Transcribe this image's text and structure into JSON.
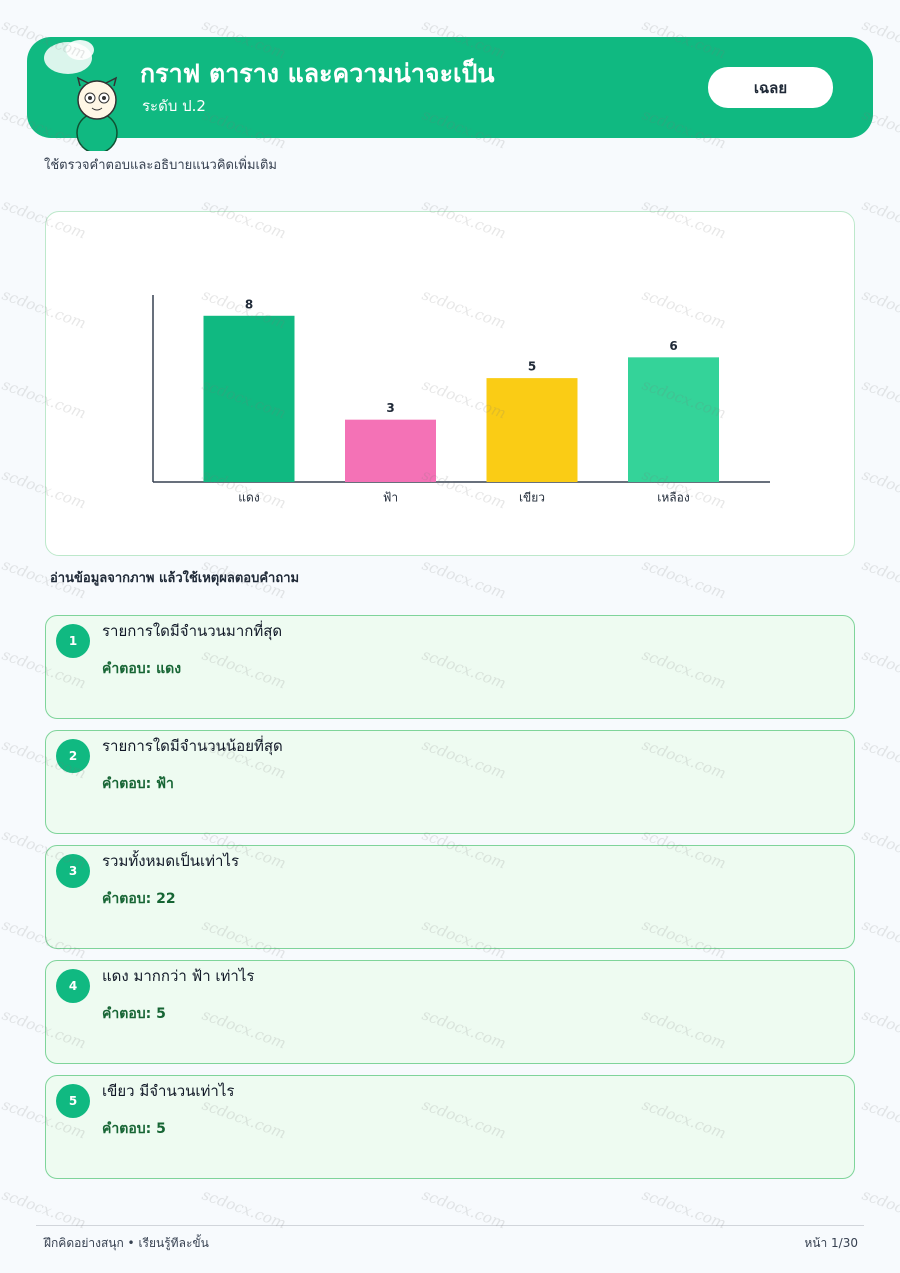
{
  "header": {
    "title": "กราฟ ตาราง และความน่าจะเป็น",
    "subtitle": "ระดับ ป.2",
    "badge": "เฉลย"
  },
  "intro": "ใช้ตรวจคำตอบและอธิบายแนวคิดเพิ่มเติม",
  "chart_data": {
    "type": "bar",
    "categories": [
      "แดง",
      "ฟ้า",
      "เขียว",
      "เหลือง"
    ],
    "values": [
      8,
      3,
      5,
      6
    ],
    "colors": [
      "#10b981",
      "#f472b6",
      "#facc15",
      "#34d399"
    ],
    "ylim": [
      0,
      9
    ]
  },
  "instruction": "อ่านข้อมูลจากภาพ แล้วใช้เหตุผลตอบคำถาม",
  "questions": [
    {
      "number": 1,
      "question": "รายการใดมีจำนวนมากที่สุด",
      "answer_label": "คำตอบ:",
      "answer": "แดง"
    },
    {
      "number": 2,
      "question": "รายการใดมีจำนวนน้อยที่สุด",
      "answer_label": "คำตอบ:",
      "answer": "ฟ้า"
    },
    {
      "number": 3,
      "question": "รวมทั้งหมดเป็นเท่าไร",
      "answer_label": "คำตอบ:",
      "answer": "22"
    },
    {
      "number": 4,
      "question": "แดง มากกว่า ฟ้า เท่าไร",
      "answer_label": "คำตอบ:",
      "answer": "5"
    },
    {
      "number": 5,
      "question": "เขียว มีจำนวนเท่าไร",
      "answer_label": "คำตอบ:",
      "answer": "5"
    }
  ],
  "footer": {
    "left": "ฝึกคิดอย่างสนุก • เรียนรู้ทีละขั้น",
    "right": "หน้า 1/30"
  },
  "watermark": "scdocx.com"
}
